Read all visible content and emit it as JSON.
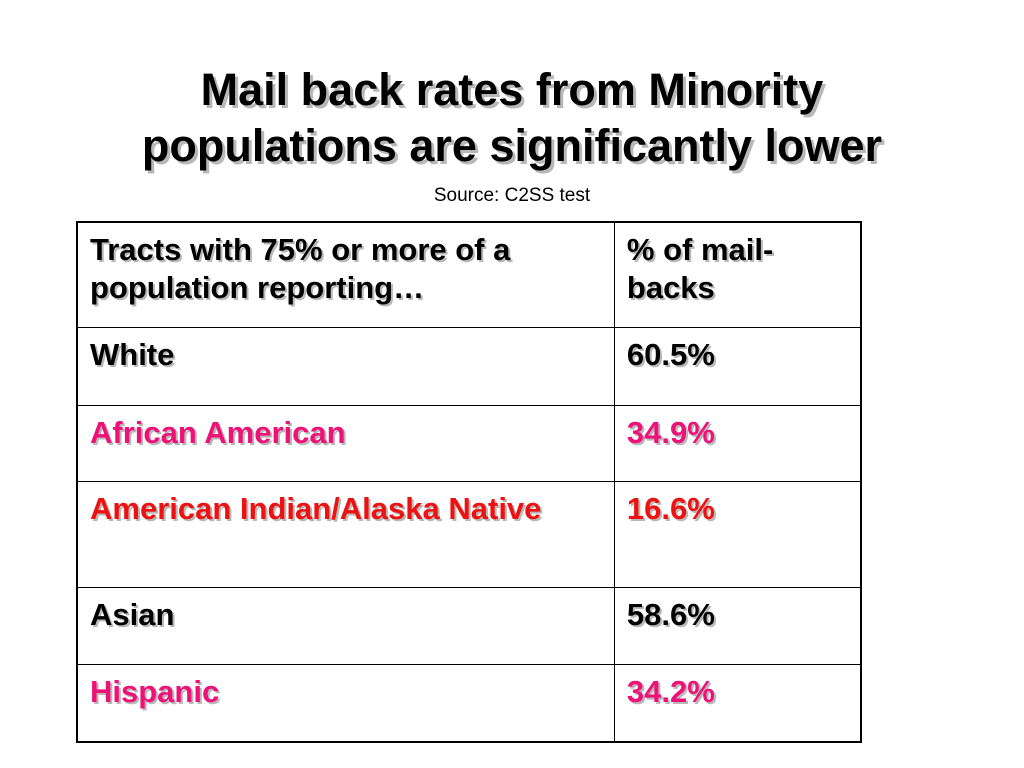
{
  "title": {
    "line1": "Mail back rates from Minority",
    "line2": "populations are significantly lower"
  },
  "source": "Source:  C2SS test",
  "table": {
    "headers": [
      "Tracts with 75% or more of a population reporting…",
      "% of mail-backs"
    ],
    "rows": [
      {
        "label": "White",
        "value": "60.5%",
        "color": "#000000"
      },
      {
        "label": "African American",
        "value": "34.9%",
        "color": "#ee1177"
      },
      {
        "label": "American Indian/Alaska Native",
        "value": "16.6%",
        "color": "#ee1111"
      },
      {
        "label": "Asian",
        "value": "58.6%",
        "color": "#000000"
      },
      {
        "label": "Hispanic",
        "value": "34.2%",
        "color": "#ee1177"
      }
    ]
  }
}
